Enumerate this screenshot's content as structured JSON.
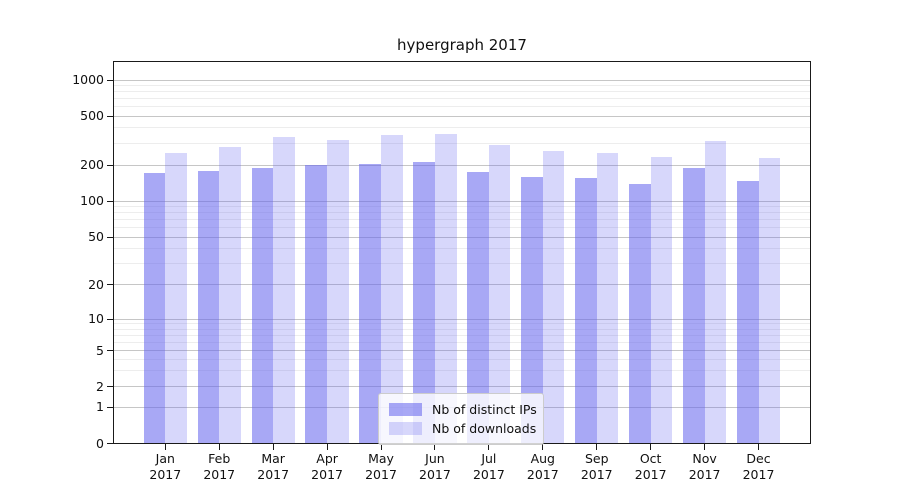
{
  "title": "hypergraph 2017",
  "chart_data": {
    "type": "bar",
    "title": "hypergraph 2017",
    "categories": [
      "Jan",
      "Feb",
      "Mar",
      "Apr",
      "May",
      "Jun",
      "Jul",
      "Aug",
      "Sep",
      "Oct",
      "Nov",
      "Dec"
    ],
    "year_label": "2017",
    "series": [
      {
        "name": "Nb of distinct IPs",
        "color": "rgba(102,102,238,0.57)",
        "values": [
          172,
          178,
          187,
          200,
          205,
          212,
          175,
          158,
          156,
          138,
          187,
          148
        ]
      },
      {
        "name": "Nb of downloads",
        "color": "rgba(102,102,238,0.26)",
        "values": [
          252,
          278,
          340,
          320,
          352,
          360,
          292,
          258,
          250,
          234,
          316,
          230
        ]
      }
    ],
    "y_axis": {
      "scale": "symlog",
      "ticks": [
        0,
        1,
        2,
        5,
        10,
        20,
        50,
        100,
        200,
        500,
        1000
      ],
      "minor_ticks": [
        3,
        4,
        6,
        7,
        8,
        9,
        30,
        40,
        60,
        70,
        80,
        90,
        300,
        400,
        600,
        700,
        800,
        900
      ]
    },
    "legend": {
      "position": "lower center",
      "entries": [
        "Nb of distinct IPs",
        "Nb of downloads"
      ]
    },
    "grid": true
  },
  "colors": {
    "bar_base": "#6666ee",
    "major_grid": "#c6c6c6",
    "minor_grid": "#ededed",
    "spine": "#1a1a1a",
    "legend_border": "#cccccc"
  }
}
